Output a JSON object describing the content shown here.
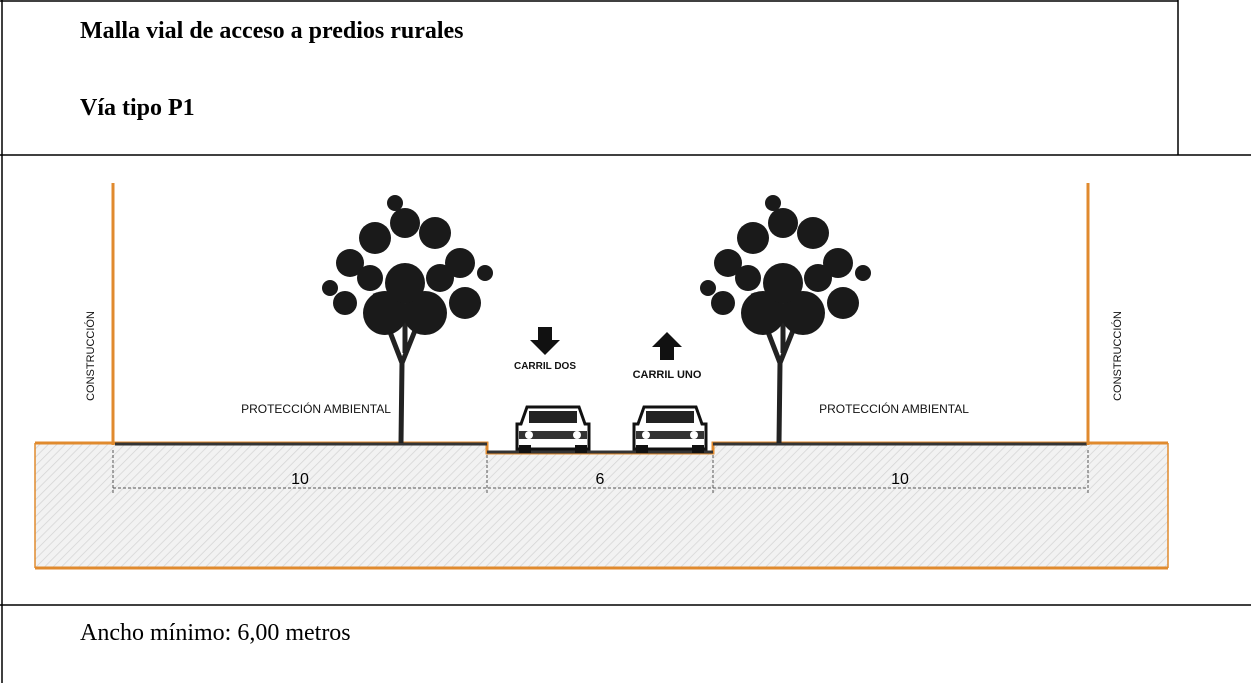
{
  "header": {
    "title": "Malla vial de acceso a predios rurales",
    "subtitle": "Vía tipo P1"
  },
  "diagram": {
    "labels": [
      "CONSTRUCCIÓN",
      "PROTECCIÓN AMBIENTAL",
      "CARRIL DOS",
      "CARRIL UNO",
      "PROTECCIÓN AMBIENTAL",
      "CONSTRUCCIÓN"
    ],
    "dimensions": [
      10,
      6,
      10
    ]
  },
  "footer": "Ancho mínimo: 6,00 metros"
}
